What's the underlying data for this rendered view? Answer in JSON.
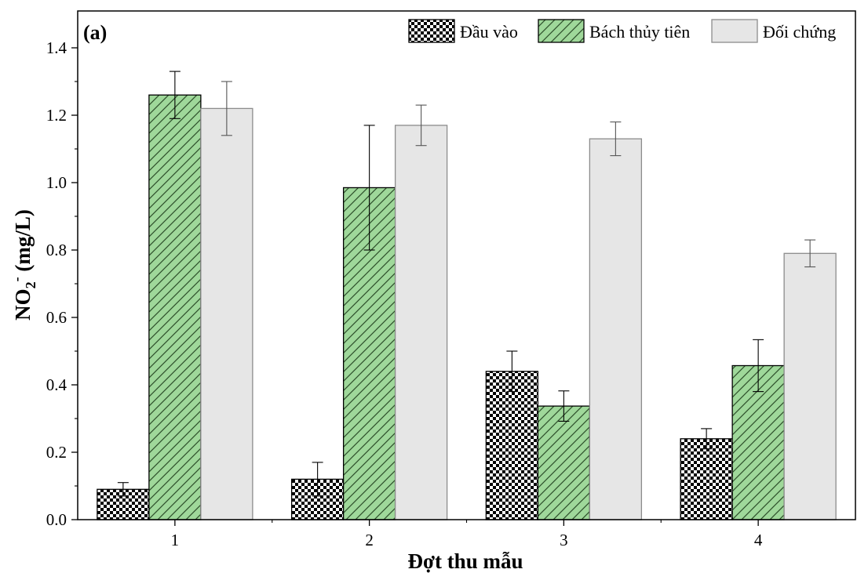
{
  "chart_data": {
    "type": "bar",
    "panel_label": "(a)",
    "xlabel": "Đợt thu mẫu",
    "ylabel": {
      "main": "NO",
      "sub": "2",
      "sup": "-",
      "unit": " (mg/L)"
    },
    "categories": [
      "1",
      "2",
      "3",
      "4"
    ],
    "ylim": [
      0,
      1.4
    ],
    "yticks": [
      "0.0",
      "0.2",
      "0.4",
      "0.6",
      "0.8",
      "1.0",
      "1.2",
      "1.4"
    ],
    "legend_position": "top-right",
    "grid": false,
    "series": [
      {
        "name": "Đầu vào",
        "pattern": "checker",
        "fill": "#000000",
        "edge": "#000000",
        "values": [
          0.09,
          0.12,
          0.44,
          0.24
        ],
        "errors": [
          0.02,
          0.05,
          0.06,
          0.03
        ]
      },
      {
        "name": "Bách thủy tiên",
        "pattern": "hatch",
        "fill": "#9fd89a",
        "edge": "#000000",
        "values": [
          1.26,
          0.985,
          0.337,
          0.457
        ],
        "errors": [
          0.07,
          0.185,
          0.045,
          0.077
        ]
      },
      {
        "name": "Đối chứng",
        "pattern": "solid",
        "fill": "#e6e6e6",
        "edge": "#8c8c8c",
        "values": [
          1.22,
          1.17,
          1.13,
          0.79
        ],
        "errors": [
          0.08,
          0.06,
          0.05,
          0.04
        ]
      }
    ]
  }
}
